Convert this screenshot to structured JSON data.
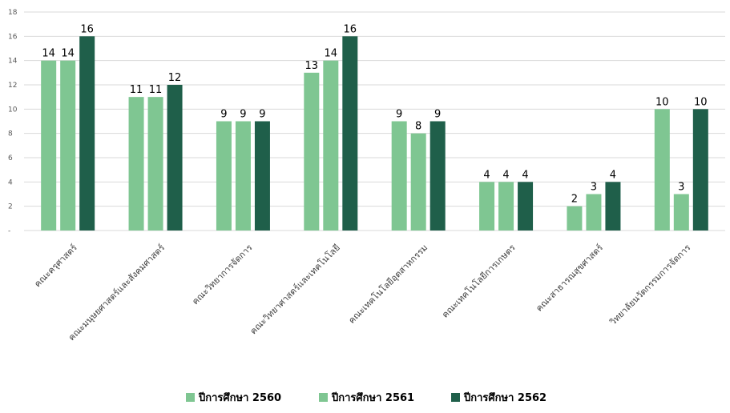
{
  "chart_data": {
    "type": "bar",
    "categories": [
      "คณะครุศาสตร์",
      "คณะมนุษยศาสตร์และสังคมศาสตร์",
      "คณะวิทยาการจัดการ",
      "คณะวิทยาศาสตร์และเทคโนโลยี",
      "คณะเทคโนโลยีอุตสาหกรรม",
      "คณะเทคโนโลยีการเกษตร",
      "คณะสาธารณสุขศาสตร์",
      "วิทยาลัยนวัตกรรมการจัดการ"
    ],
    "series": [
      {
        "name": "ปีการศึกษา 2560",
        "values": [
          14,
          11,
          9,
          13,
          9,
          4,
          2,
          10
        ],
        "color": "#7fc692"
      },
      {
        "name": "ปีการศึกษา 2561",
        "values": [
          14,
          11,
          9,
          14,
          8,
          4,
          3,
          3
        ],
        "color": "#7fc692"
      },
      {
        "name": "ปีการศึกษา 2562",
        "values": [
          16,
          12,
          9,
          16,
          9,
          4,
          4,
          10
        ],
        "color": "#1f5f4a"
      }
    ],
    "yticks": [
      "-",
      "2",
      "4",
      "6",
      "8",
      "10",
      "12",
      "14",
      "16",
      "18"
    ],
    "ylim": [
      0,
      18
    ],
    "grid": true,
    "legend_position": "bottom"
  }
}
